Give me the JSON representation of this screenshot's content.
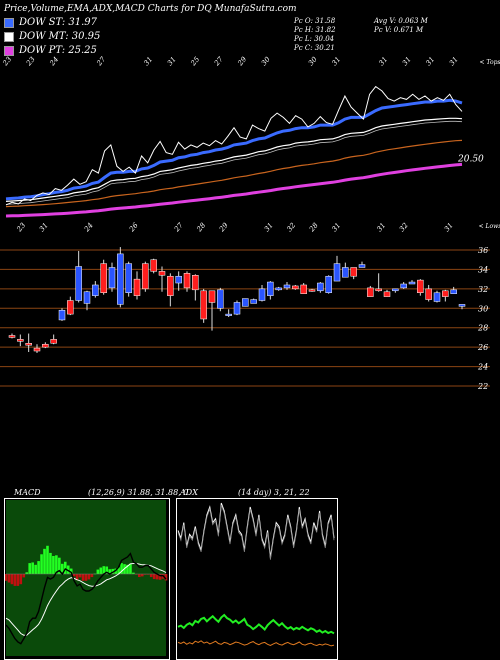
{
  "header": {
    "title": "Price,Volume,EMA,ADX,MACD Charts for DQ MunafaSutra.com",
    "legend": [
      {
        "label": "DOW ST: 31.97",
        "color": "#3a6bff"
      },
      {
        "label": "DOW MT: 30.95",
        "color": "#ffffff"
      },
      {
        "label": "DOW PT: 25.25",
        "color": "#e040e0"
      }
    ],
    "stats": {
      "pc_o": "Pc   O: 31.58",
      "pc_h": "Pc   H: 31.82",
      "pc_l": "Pc   L: 30.04",
      "pc_c": "Pc   C: 30.21",
      "avg_v": "Avg V: 0.063 M",
      "pc_v": "Pc   V: 0.671 M"
    }
  },
  "top_chart": {
    "corner_label": "< Tops",
    "last_label": "20.50",
    "top_dates": [
      "23",
      "23",
      "24",
      "",
      "27",
      "",
      "31",
      "31",
      "25",
      "27",
      "29",
      "30",
      "",
      "30",
      "31",
      "",
      "31",
      "31",
      "31",
      "31"
    ],
    "bottom_dates": [
      "23",
      "31",
      "",
      "24",
      "",
      "26",
      "",
      "27",
      "28",
      "29",
      "",
      "31",
      "32",
      "28",
      "31",
      "",
      "31",
      "32",
      "",
      "31"
    ],
    "bottom_corner": "< Lows",
    "price": [
      14.5,
      14.8,
      14.6,
      15.2,
      15.0,
      15.6,
      15.9,
      15.7,
      16.4,
      16.2,
      16.8,
      17.5,
      16.9,
      17.2,
      18.6,
      18.2,
      20.8,
      21.5,
      19.0,
      18.4,
      18.9,
      18.2,
      20.2,
      19.4,
      20.9,
      21.9,
      20.6,
      20.4,
      21.8,
      21.0,
      21.5,
      21.2,
      21.7,
      21.4,
      22.0,
      21.6,
      22.5,
      23.5,
      22.4,
      22.2,
      23.8,
      23.4,
      23.1,
      24.6,
      25.2,
      24.7,
      24.0,
      24.9,
      24.5,
      23.6,
      24.0,
      24.8,
      24.1,
      23.9,
      25.6,
      27.2,
      25.9,
      25.2,
      24.5,
      27.4,
      28.3,
      27.8,
      26.9,
      26.6,
      27.0,
      26.8,
      27.4,
      26.8,
      27.2,
      26.6,
      27.0,
      26.7,
      27.4,
      26.2,
      25.4
    ],
    "ema_blue": [
      15.2,
      15.25,
      15.3,
      15.4,
      15.45,
      15.55,
      15.7,
      15.8,
      15.95,
      16.05,
      16.2,
      16.45,
      16.55,
      16.7,
      17.0,
      17.15,
      17.7,
      18.2,
      18.3,
      18.3,
      18.4,
      18.4,
      18.7,
      18.8,
      19.1,
      19.5,
      19.6,
      19.7,
      20.0,
      20.1,
      20.3,
      20.4,
      20.6,
      20.7,
      20.9,
      21.0,
      21.2,
      21.5,
      21.6,
      21.7,
      22.0,
      22.2,
      22.3,
      22.6,
      22.9,
      23.1,
      23.2,
      23.4,
      23.5,
      23.5,
      23.6,
      23.8,
      23.8,
      23.8,
      24.1,
      24.5,
      24.7,
      24.7,
      24.7,
      25.1,
      25.5,
      25.8,
      25.9,
      26.0,
      26.1,
      26.2,
      26.3,
      26.4,
      26.5,
      26.5,
      26.6,
      26.6,
      26.7,
      26.6,
      26.4
    ],
    "ema_white": [
      14.9,
      14.95,
      15.0,
      15.05,
      15.1,
      15.2,
      15.3,
      15.4,
      15.5,
      15.6,
      15.7,
      15.9,
      16.0,
      16.1,
      16.35,
      16.5,
      16.9,
      17.3,
      17.4,
      17.45,
      17.55,
      17.6,
      17.8,
      17.9,
      18.1,
      18.4,
      18.5,
      18.6,
      18.8,
      18.95,
      19.1,
      19.2,
      19.35,
      19.45,
      19.6,
      19.7,
      19.9,
      20.1,
      20.2,
      20.3,
      20.5,
      20.7,
      20.8,
      21.0,
      21.25,
      21.4,
      21.5,
      21.7,
      21.8,
      21.85,
      21.95,
      22.1,
      22.15,
      22.2,
      22.4,
      22.7,
      22.85,
      22.9,
      22.95,
      23.2,
      23.5,
      23.7,
      23.8,
      23.9,
      24.0,
      24.1,
      24.2,
      24.3,
      24.4,
      24.45,
      24.5,
      24.55,
      24.6,
      24.6,
      24.55
    ],
    "ema_orange": [
      14.3,
      14.33,
      14.36,
      14.4,
      14.44,
      14.48,
      14.53,
      14.58,
      14.64,
      14.7,
      14.77,
      14.85,
      14.92,
      15.0,
      15.1,
      15.18,
      15.32,
      15.48,
      15.58,
      15.65,
      15.73,
      15.8,
      15.92,
      16.0,
      16.12,
      16.27,
      16.37,
      16.46,
      16.6,
      16.7,
      16.82,
      16.92,
      17.04,
      17.14,
      17.26,
      17.36,
      17.5,
      17.66,
      17.77,
      17.87,
      18.02,
      18.16,
      18.27,
      18.43,
      18.6,
      18.74,
      18.85,
      18.99,
      19.1,
      19.19,
      19.29,
      19.42,
      19.51,
      19.6,
      19.75,
      19.95,
      20.1,
      20.2,
      20.28,
      20.45,
      20.64,
      20.8,
      20.93,
      21.04,
      21.15,
      21.26,
      21.37,
      21.47,
      21.57,
      21.66,
      21.75,
      21.83,
      21.92,
      21.98,
      22.02
    ],
    "ema_magenta": [
      13.2,
      13.22,
      13.24,
      13.27,
      13.3,
      13.33,
      13.36,
      13.4,
      13.44,
      13.48,
      13.53,
      13.58,
      13.63,
      13.68,
      13.75,
      13.81,
      13.9,
      14.0,
      14.07,
      14.13,
      14.19,
      14.25,
      14.33,
      14.4,
      14.48,
      14.57,
      14.65,
      14.72,
      14.81,
      14.89,
      14.97,
      15.05,
      15.14,
      15.22,
      15.31,
      15.39,
      15.49,
      15.6,
      15.69,
      15.77,
      15.88,
      15.98,
      16.07,
      16.18,
      16.3,
      16.41,
      16.5,
      16.61,
      16.7,
      16.78,
      16.87,
      16.97,
      17.05,
      17.13,
      17.25,
      17.39,
      17.5,
      17.59,
      17.67,
      17.8,
      17.94,
      18.07,
      18.18,
      18.28,
      18.38,
      18.48,
      18.58,
      18.67,
      18.76,
      18.85,
      18.93,
      19.01,
      19.09,
      19.16,
      19.22
    ]
  },
  "candles": {
    "price_labels": [
      "36",
      "34",
      "32",
      "30",
      "28",
      "26",
      "24",
      "22"
    ],
    "open": [
      27.2,
      26.8,
      26.4,
      25.9,
      26.3,
      26.8,
      28.8,
      30.8,
      30.8,
      30.5,
      31.3,
      34.6,
      32.1,
      30.4,
      31.6,
      33.0,
      34.6,
      35.0,
      33.8,
      33.3,
      32.6,
      33.6,
      33.4,
      31.8,
      31.8,
      30.0,
      29.4,
      29.4,
      30.2,
      30.5,
      30.8,
      31.3,
      31.9,
      32.1,
      32.3,
      32.4,
      31.9,
      31.8,
      31.6,
      32.8,
      33.2,
      34.2,
      34.2,
      32.1,
      32.0,
      31.7,
      31.8,
      32.1,
      32.5,
      32.9,
      32.0,
      30.7,
      31.8,
      31.5,
      30.2
    ],
    "close": [
      27.0,
      26.6,
      26.2,
      25.6,
      26.0,
      26.4,
      29.8,
      29.4,
      34.3,
      31.7,
      32.4,
      31.6,
      34.2,
      35.6,
      34.6,
      31.3,
      32.0,
      33.8,
      33.4,
      31.3,
      33.3,
      32.1,
      31.9,
      28.9,
      30.6,
      31.9,
      29.4,
      30.6,
      31.0,
      30.9,
      32.0,
      32.7,
      32.1,
      32.4,
      32.0,
      31.5,
      31.8,
      32.6,
      33.3,
      34.6,
      34.2,
      33.3,
      34.5,
      31.2,
      31.8,
      31.2,
      32.0,
      32.5,
      32.7,
      31.6,
      30.9,
      31.6,
      31.2,
      31.9,
      30.4
    ],
    "high": [
      27.4,
      27.3,
      27.4,
      26.3,
      26.5,
      27.3,
      30.0,
      31.2,
      35.9,
      31.8,
      32.8,
      35.0,
      34.7,
      36.3,
      34.8,
      33.8,
      34.8,
      35.1,
      34.3,
      33.6,
      33.8,
      33.8,
      33.5,
      32.0,
      31.8,
      32.1,
      29.9,
      30.8,
      31.0,
      31.0,
      32.4,
      32.8,
      32.2,
      32.7,
      32.4,
      32.6,
      32.0,
      32.7,
      33.4,
      35.4,
      34.7,
      34.2,
      34.8,
      32.3,
      33.6,
      31.9,
      32.0,
      32.7,
      32.9,
      33.0,
      32.4,
      31.8,
      31.9,
      32.2,
      30.4
    ],
    "low": [
      26.9,
      26.1,
      25.5,
      25.4,
      25.9,
      26.3,
      28.7,
      29.3,
      30.6,
      29.8,
      31.1,
      31.4,
      31.7,
      30.1,
      31.2,
      30.9,
      31.7,
      33.6,
      31.7,
      30.2,
      31.8,
      31.7,
      30.8,
      28.5,
      27.7,
      29.7,
      29.1,
      29.3,
      30.2,
      30.8,
      30.7,
      30.9,
      31.8,
      31.9,
      31.9,
      31.5,
      31.7,
      31.6,
      31.5,
      32.8,
      33.2,
      33.0,
      34.2,
      31.2,
      31.7,
      31.2,
      31.6,
      32.0,
      32.5,
      31.3,
      30.7,
      30.6,
      30.7,
      31.5,
      29.9
    ]
  },
  "macd": {
    "label": "MACD",
    "params": "(12,26,9) 31.88, 31.88, 0",
    "macd": [
      -1.5,
      -1.6,
      -1.75,
      -1.9,
      -2.0,
      -2.05,
      -1.9,
      -1.75,
      -1.4,
      -1.3,
      -1.3,
      -1.1,
      -0.75,
      -0.4,
      -0.1,
      -0.15,
      -0.1,
      0.05,
      0.1,
      0.0,
      0.15,
      0.1,
      0.05,
      -0.2,
      -0.35,
      -0.3,
      -0.45,
      -0.5,
      -0.5,
      -0.45,
      -0.35,
      -0.2,
      -0.1,
      0.0,
      0.05,
      0.0,
      0.05,
      0.1,
      0.2,
      0.4,
      0.45,
      0.5,
      0.6,
      0.35,
      0.3,
      0.2,
      0.2,
      0.25,
      0.25,
      0.15,
      0.05,
      0.0,
      -0.05,
      -0.05,
      -0.15
    ],
    "signal": [
      -1.3,
      -1.35,
      -1.45,
      -1.55,
      -1.65,
      -1.75,
      -1.8,
      -1.8,
      -1.72,
      -1.64,
      -1.57,
      -1.48,
      -1.33,
      -1.14,
      -0.93,
      -0.77,
      -0.63,
      -0.5,
      -0.38,
      -0.3,
      -0.21,
      -0.15,
      -0.11,
      -0.13,
      -0.17,
      -0.2,
      -0.25,
      -0.3,
      -0.34,
      -0.36,
      -0.36,
      -0.33,
      -0.29,
      -0.23,
      -0.17,
      -0.14,
      -0.1,
      -0.06,
      0.0,
      0.08,
      0.16,
      0.23,
      0.3,
      0.31,
      0.31,
      0.29,
      0.27,
      0.27,
      0.26,
      0.24,
      0.2,
      0.16,
      0.12,
      0.09,
      0.04
    ]
  },
  "adx": {
    "label": "ADX",
    "params": "(14 day) 3, 21, 22",
    "adx": [
      32,
      30,
      34,
      28,
      31,
      30,
      33,
      29,
      27,
      32,
      36,
      38,
      34,
      35,
      31,
      39,
      37,
      33,
      29,
      34,
      36,
      32,
      31,
      27,
      33,
      38,
      35,
      31,
      36,
      30,
      28,
      32,
      25,
      30,
      34,
      33,
      29,
      31,
      36,
      33,
      28,
      32,
      38,
      33,
      35,
      31,
      29,
      34,
      32,
      37,
      31,
      28,
      34,
      36,
      30
    ],
    "plus": [
      7.5,
      7.8,
      7.2,
      8.0,
      8.4,
      7.9,
      9.0,
      8.6,
      9.5,
      9.8,
      8.9,
      9.6,
      10.2,
      9.4,
      8.8,
      9.9,
      10.5,
      9.7,
      9.3,
      8.6,
      9.1,
      8.4,
      8.9,
      9.5,
      8.0,
      7.6,
      6.9,
      7.4,
      8.1,
      7.5,
      6.8,
      7.9,
      8.6,
      9.2,
      8.5,
      7.8,
      8.4,
      7.6,
      7.0,
      7.4,
      6.8,
      7.2,
      6.9,
      7.5,
      7.0,
      6.6,
      7.1,
      6.8,
      6.2,
      6.6,
      6.0,
      6.4,
      5.9,
      6.2,
      5.8
    ],
    "minus": [
      3.5,
      3.2,
      3.6,
      3.0,
      3.4,
      3.1,
      3.8,
      3.5,
      3.9,
      3.3,
      3.6,
      3.1,
      3.4,
      3.8,
      3.2,
      3.0,
      3.5,
      3.3,
      2.9,
      3.2,
      3.6,
      3.4,
      3.1,
      2.8,
      3.0,
      3.4,
      3.7,
      3.2,
      2.9,
      3.3,
      3.5,
      3.0,
      2.7,
      3.1,
      3.4,
      3.0,
      2.8,
      3.2,
      3.5,
      3.1,
      2.9,
      3.2,
      3.6,
      3.0,
      2.8,
      3.1,
      3.3,
      2.9,
      2.7,
      3.0,
      2.8,
      3.1,
      2.9,
      2.6,
      2.8
    ]
  },
  "chart_data": {
    "type": "line",
    "title": "Price,Volume,EMA,ADX,MACD Charts for DQ MunafaSutra.com",
    "y_ticks": [
      "36",
      "34",
      "32",
      "30",
      "28",
      "26",
      "24",
      "22"
    ],
    "ylim": [
      22,
      36
    ],
    "series": [
      {
        "name": "DOW ST: 31.97"
      },
      {
        "name": "DOW MT: 30.95"
      },
      {
        "name": "DOW PT: 25.25"
      }
    ],
    "colors": {
      "up": "#2a55ff",
      "down": "#ff1e1e",
      "ema_st": "#3a6bff",
      "ema_mt": "#ffffff",
      "ema_pt": "#e040e0",
      "ema_long": "#c8641e",
      "grid": "#8b4513"
    }
  }
}
